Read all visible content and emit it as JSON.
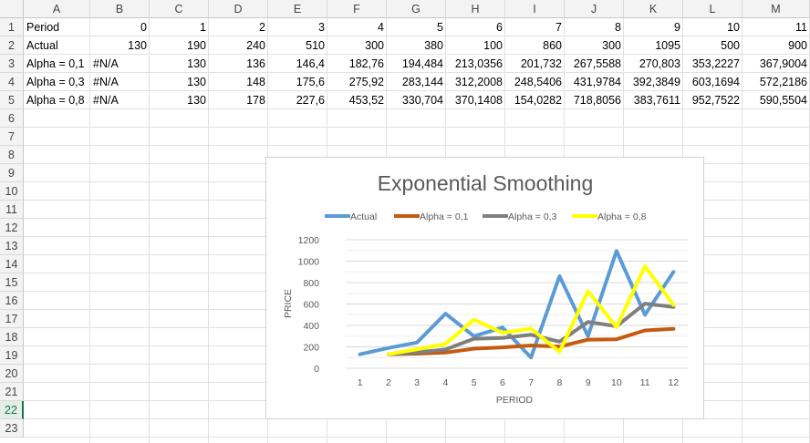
{
  "columns": [
    "A",
    "B",
    "C",
    "D",
    "E",
    "F",
    "G",
    "H",
    "I",
    "J",
    "K",
    "L",
    "M"
  ],
  "rows": [
    "1",
    "2",
    "3",
    "4",
    "5",
    "6",
    "7",
    "8",
    "9",
    "10",
    "11",
    "12",
    "13",
    "14",
    "15",
    "16",
    "17",
    "18",
    "19",
    "20",
    "21",
    "22",
    "23"
  ],
  "active_row": "22",
  "table": [
    [
      "Period",
      "0",
      "1",
      "2",
      "3",
      "4",
      "5",
      "6",
      "7",
      "8",
      "9",
      "10",
      "11"
    ],
    [
      "Actual",
      "130",
      "190",
      "240",
      "510",
      "300",
      "380",
      "100",
      "860",
      "300",
      "1095",
      "500",
      "900"
    ],
    [
      "Alpha = 0,1",
      "#N/A",
      "130",
      "136",
      "146,4",
      "182,76",
      "194,484",
      "213,0356",
      "201,732",
      "267,5588",
      "270,803",
      "353,2227",
      "367,9004"
    ],
    [
      "Alpha = 0,3",
      "#N/A",
      "130",
      "148",
      "175,6",
      "275,92",
      "283,144",
      "312,2008",
      "248,5406",
      "431,9784",
      "392,3849",
      "603,1694",
      "572,2186"
    ],
    [
      "Alpha = 0,8",
      "#N/A",
      "130",
      "178",
      "227,6",
      "453,52",
      "330,704",
      "370,1408",
      "154,0282",
      "718,8056",
      "383,7611",
      "952,7522",
      "590,5504"
    ]
  ],
  "chart_data": {
    "type": "line",
    "title": "Exponential Smoothing",
    "xlabel": "PERIOD",
    "ylabel": "PRICE",
    "x": [
      1,
      2,
      3,
      4,
      5,
      6,
      7,
      8,
      9,
      10,
      11,
      12
    ],
    "ylim": [
      0,
      1200
    ],
    "yticks": [
      "0",
      "200",
      "400",
      "600",
      "800",
      "1000",
      "1200"
    ],
    "grid": true,
    "legend": "top",
    "series": [
      {
        "name": "Actual",
        "color": "#5b9bd5",
        "values": [
          130,
          190,
          240,
          510,
          300,
          380,
          100,
          860,
          300,
          1095,
          500,
          900
        ]
      },
      {
        "name": "Alpha = 0,1",
        "color": "#c55a11",
        "values": [
          null,
          130,
          136,
          146.4,
          182.76,
          194.484,
          213.0356,
          201.732,
          267.5588,
          270.803,
          353.2227,
          367.9004
        ]
      },
      {
        "name": "Alpha = 0,3",
        "color": "#7f7f7f",
        "values": [
          null,
          130,
          148,
          175.6,
          275.92,
          283.144,
          312.2008,
          248.5406,
          431.9784,
          392.3849,
          603.1694,
          572.2186
        ]
      },
      {
        "name": "Alpha = 0,8",
        "color": "#ffff00",
        "values": [
          null,
          130,
          178,
          227.6,
          453.52,
          330.704,
          370.1408,
          154.0282,
          718.8056,
          383.7611,
          952.7522,
          590.5504
        ]
      }
    ]
  }
}
